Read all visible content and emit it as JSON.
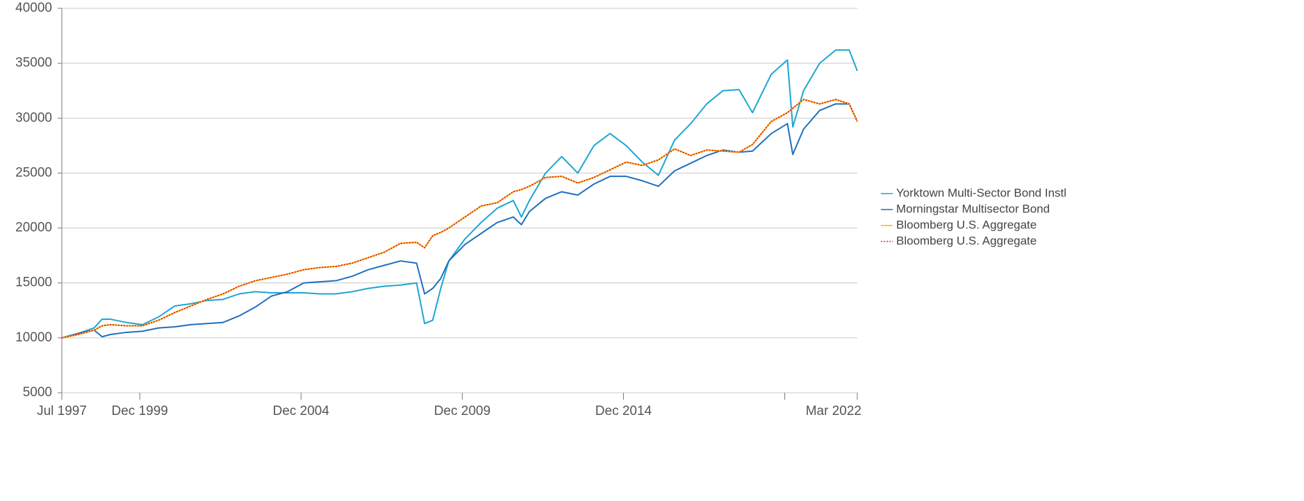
{
  "chart_data": {
    "type": "line",
    "x": [
      "1997-07",
      "1998-01",
      "1998-07",
      "1998-10",
      "1999-01",
      "1999-07",
      "2000-01",
      "2000-07",
      "2001-01",
      "2001-07",
      "2002-01",
      "2002-07",
      "2003-01",
      "2003-07",
      "2004-01",
      "2004-07",
      "2005-01",
      "2005-07",
      "2006-01",
      "2006-07",
      "2007-01",
      "2007-07",
      "2008-01",
      "2008-07",
      "2008-10",
      "2009-01",
      "2009-04",
      "2009-07",
      "2010-01",
      "2010-07",
      "2011-01",
      "2011-07",
      "2011-10",
      "2012-01",
      "2012-07",
      "2013-01",
      "2013-07",
      "2014-01",
      "2014-07",
      "2015-01",
      "2015-07",
      "2016-01",
      "2016-07",
      "2017-01",
      "2017-07",
      "2018-01",
      "2018-07",
      "2018-12",
      "2019-07",
      "2020-01",
      "2020-03",
      "2020-07",
      "2021-01",
      "2021-07",
      "2021-12",
      "2022-03"
    ],
    "series": [
      {
        "name": "Yorktown Multi-Sector Bond Instl",
        "color": "#1aa6d4",
        "line_style": "solid",
        "values": [
          10000,
          10400,
          10900,
          11700,
          11700,
          11400,
          11200,
          11900,
          12900,
          13100,
          13400,
          13500,
          14000,
          14200,
          14100,
          14100,
          14100,
          14000,
          14000,
          14200,
          14500,
          14700,
          14800,
          15000,
          11300,
          11600,
          14500,
          17000,
          19000,
          20500,
          21800,
          22500,
          21000,
          22500,
          25000,
          26500,
          25000,
          27500,
          28600,
          27500,
          26000,
          24800,
          28000,
          29500,
          31300,
          32500,
          32600,
          30500,
          34000,
          35300,
          29200,
          32500,
          35000,
          36200,
          36200,
          34300
        ]
      },
      {
        "name": "Morningstar Multisector Bond",
        "color": "#1f6fbf",
        "line_style": "solid",
        "values": [
          10000,
          10400,
          10700,
          10100,
          10300,
          10500,
          10600,
          10900,
          11000,
          11200,
          11300,
          11400,
          12000,
          12800,
          13800,
          14200,
          15000,
          15100,
          15200,
          15600,
          16200,
          16600,
          17000,
          16800,
          14000,
          14500,
          15400,
          17000,
          18500,
          19500,
          20500,
          21000,
          20300,
          21500,
          22700,
          23300,
          23000,
          24000,
          24700,
          24700,
          24300,
          23800,
          25200,
          25900,
          26600,
          27100,
          26900,
          27000,
          28600,
          29500,
          26700,
          29000,
          30700,
          31300,
          31300,
          29700
        ]
      },
      {
        "name": "Bloomberg U.S. Aggregate",
        "color": "#f5b800",
        "line_style": "solid",
        "values": [
          10000,
          10300,
          10700,
          11100,
          11200,
          11100,
          11100,
          11600,
          12300,
          12900,
          13500,
          14000,
          14700,
          15200,
          15500,
          15800,
          16200,
          16400,
          16500,
          16800,
          17300,
          17800,
          18600,
          18700,
          18200,
          19300,
          19600,
          20000,
          21000,
          22000,
          22300,
          23300,
          23500,
          23800,
          24600,
          24700,
          24100,
          24600,
          25300,
          26000,
          25700,
          26200,
          27200,
          26600,
          27100,
          27000,
          26900,
          27600,
          29700,
          30500,
          30900,
          31700,
          31300,
          31700,
          31300,
          29700
        ]
      },
      {
        "name": "Bloomberg U.S. Aggregate",
        "color": "#e8281c",
        "line_style": "dotted",
        "values": [
          10000,
          10300,
          10700,
          11100,
          11200,
          11100,
          11100,
          11600,
          12300,
          12900,
          13500,
          14000,
          14700,
          15200,
          15500,
          15800,
          16200,
          16400,
          16500,
          16800,
          17300,
          17800,
          18600,
          18700,
          18200,
          19300,
          19600,
          20000,
          21000,
          22000,
          22300,
          23300,
          23500,
          23800,
          24600,
          24700,
          24100,
          24600,
          25300,
          26000,
          25700,
          26200,
          27200,
          26600,
          27100,
          27000,
          26900,
          27600,
          29700,
          30500,
          30900,
          31700,
          31300,
          31700,
          31300,
          29700
        ]
      }
    ],
    "xlim": [
      "1997-07",
      "2022-03"
    ],
    "xticks": [
      {
        "value": "1997-07",
        "label": "Jul 1997"
      },
      {
        "value": "1999-12",
        "label": "Dec 1999"
      },
      {
        "value": "2004-12",
        "label": "Dec 2004"
      },
      {
        "value": "2009-12",
        "label": "Dec 2009"
      },
      {
        "value": "2014-12",
        "label": "Dec 2014"
      },
      {
        "value": "2019-12",
        "label": null
      },
      {
        "value": "2022-03",
        "label": "Mar 2022"
      }
    ],
    "ylim": [
      5000,
      40000
    ],
    "yticks": [
      5000,
      10000,
      15000,
      20000,
      25000,
      30000,
      35000,
      40000
    ],
    "grid": true,
    "legend": "right"
  }
}
